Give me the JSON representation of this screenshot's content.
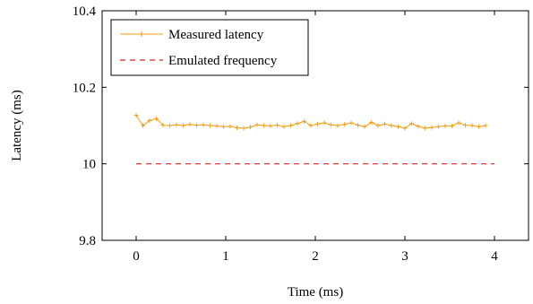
{
  "chart_data": {
    "type": "line",
    "xlabel": "Time (ms)",
    "ylabel": "Latency (ms)",
    "xlim": [
      -0.38,
      4.38
    ],
    "ylim": [
      9.8,
      10.4
    ],
    "x_ticks": [
      "0",
      "1",
      "2",
      "3",
      "4"
    ],
    "x_tick_values": [
      0,
      1,
      2,
      3,
      4
    ],
    "y_ticks": [
      "9.8",
      "10",
      "10.2",
      "10.4"
    ],
    "y_tick_values": [
      9.8,
      10.0,
      10.2,
      10.4
    ],
    "grid": false,
    "legend_position": "top-left",
    "series": [
      {
        "name": "Measured latency",
        "color": "#f39c12",
        "marker": "plus",
        "x": [
          0,
          0.075,
          0.15,
          0.225,
          0.3,
          0.375,
          0.45,
          0.525,
          0.6,
          0.675,
          0.75,
          0.825,
          0.9,
          0.975,
          1.05,
          1.125,
          1.2,
          1.275,
          1.35,
          1.425,
          1.5,
          1.575,
          1.65,
          1.725,
          1.8,
          1.875,
          1.95,
          2.025,
          2.1,
          2.175,
          2.25,
          2.325,
          2.4,
          2.475,
          2.55,
          2.625,
          2.7,
          2.775,
          2.85,
          2.925,
          3.0,
          3.075,
          3.15,
          3.225,
          3.3,
          3.375,
          3.45,
          3.525,
          3.6,
          3.675,
          3.75,
          3.825,
          3.9
        ],
        "y": [
          10.127,
          10.1,
          10.113,
          10.118,
          10.101,
          10.1,
          10.102,
          10.1,
          10.103,
          10.101,
          10.102,
          10.1,
          10.099,
          10.097,
          10.098,
          10.094,
          10.093,
          10.096,
          10.102,
          10.1,
          10.099,
          10.101,
          10.097,
          10.1,
          10.105,
          10.111,
          10.1,
          10.104,
          10.107,
          10.102,
          10.1,
          10.103,
          10.107,
          10.101,
          10.097,
          10.108,
          10.1,
          10.104,
          10.1,
          10.097,
          10.093,
          10.105,
          10.098,
          10.093,
          10.095,
          10.097,
          10.099,
          10.099,
          10.107,
          10.101,
          10.1,
          10.097,
          10.1
        ]
      },
      {
        "name": "Emulated frequency",
        "color": "#e02020",
        "style": "dashed",
        "x": [
          0,
          4
        ],
        "y": [
          10.0,
          10.0
        ]
      }
    ]
  }
}
